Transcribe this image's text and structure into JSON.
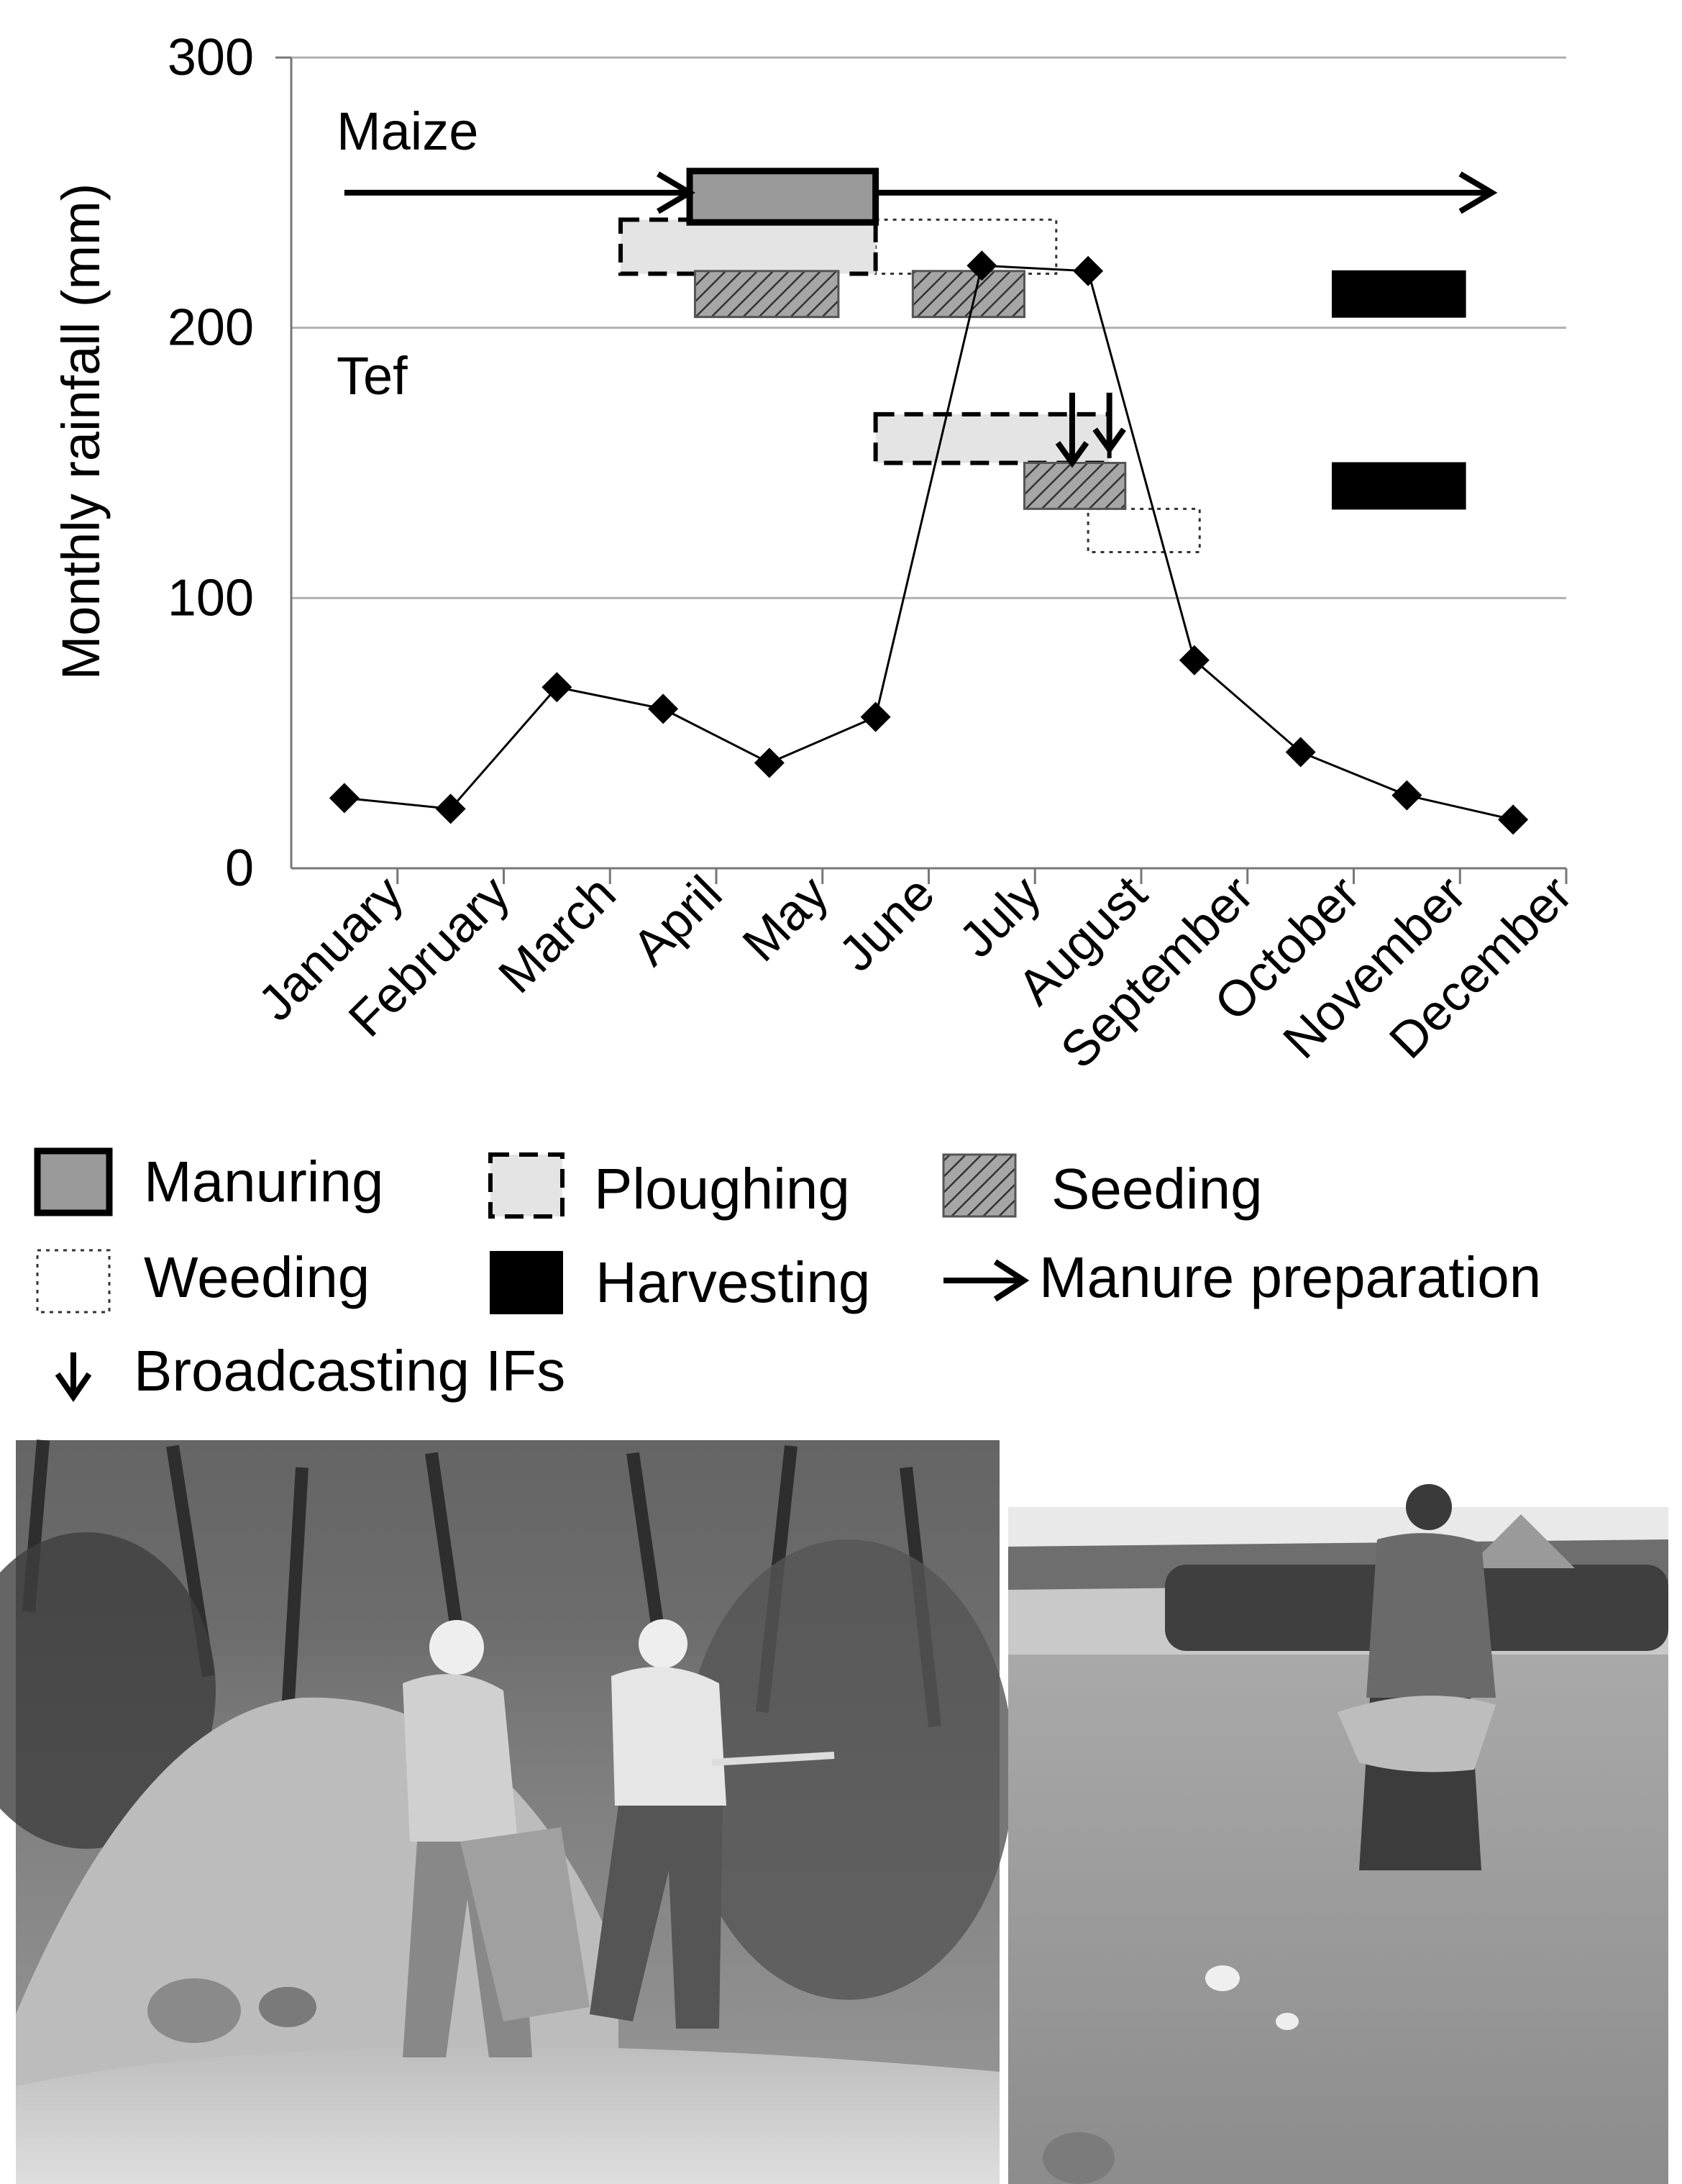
{
  "chart_data": {
    "type": "line",
    "ylabel": "Monthly rainfall (mm)",
    "xlabel": "",
    "ylim": [
      0,
      300
    ],
    "yticks": [
      "0",
      "100",
      "200",
      "300"
    ],
    "grid": true,
    "categories": [
      "January",
      "February",
      "March",
      "April",
      "May",
      "June",
      "July",
      "August",
      "September",
      "October",
      "November",
      "December"
    ],
    "series": [
      {
        "values": [
          26,
          22,
          67,
          59,
          39,
          56,
          223,
          221,
          77,
          43,
          27,
          18
        ]
      }
    ],
    "crop_labels": {
      "maize": "Maize",
      "tef": "Tef"
    },
    "activities": [
      {
        "crop": "Maize",
        "type": "manure-prep",
        "start": 0.0,
        "end": 3.25,
        "y": 250
      },
      {
        "crop": "Maize",
        "type": "manure-prep",
        "start": 5.0,
        "end": 10.8,
        "y": 250
      },
      {
        "crop": "Maize",
        "type": "manuring",
        "start": 3.25,
        "end": 5.0,
        "top": 258,
        "bottom": 239
      },
      {
        "crop": "Maize",
        "type": "ploughing",
        "start": 2.6,
        "end": 5.0,
        "top": 240,
        "bottom": 220
      },
      {
        "crop": "Maize",
        "type": "weeding",
        "start": 5.0,
        "end": 6.7,
        "top": 240,
        "bottom": 220
      },
      {
        "crop": "Maize",
        "type": "seeding",
        "start": 3.3,
        "end": 4.65,
        "top": 221,
        "bottom": 204
      },
      {
        "crop": "Maize",
        "type": "seeding",
        "start": 5.35,
        "end": 6.4,
        "top": 221,
        "bottom": 204
      },
      {
        "crop": "Maize",
        "type": "harvesting",
        "start": 9.3,
        "end": 10.55,
        "top": 221,
        "bottom": 204
      },
      {
        "crop": "Tef",
        "type": "ploughing",
        "start": 5.0,
        "end": 7.2,
        "top": 168,
        "bottom": 150
      },
      {
        "crop": "Tef",
        "type": "seeding",
        "start": 6.4,
        "end": 7.35,
        "top": 150,
        "bottom": 133
      },
      {
        "crop": "Tef",
        "type": "weeding",
        "start": 7.0,
        "end": 8.05,
        "top": 133,
        "bottom": 117
      },
      {
        "crop": "Tef",
        "type": "harvesting",
        "start": 9.3,
        "end": 10.55,
        "top": 150,
        "bottom": 133
      },
      {
        "crop": "Tef",
        "type": "broadcasting",
        "at": 6.85,
        "from": 176,
        "to": 150
      },
      {
        "crop": "Tef",
        "type": "broadcasting",
        "at": 7.2,
        "from": 176,
        "to": 155
      }
    ],
    "legend": [
      {
        "key": "manuring",
        "label": "Manuring"
      },
      {
        "key": "ploughing",
        "label": "Ploughing"
      },
      {
        "key": "seeding",
        "label": "Seeding"
      },
      {
        "key": "weeding",
        "label": "Weeding"
      },
      {
        "key": "harvesting",
        "label": "Harvesting"
      },
      {
        "key": "manure-prep",
        "label": "Manure preparation"
      },
      {
        "key": "broadcasting",
        "label": "Broadcasting IFs"
      }
    ]
  },
  "colors": {
    "manuring": "#9a9a9a",
    "ploughing": "#e4e4e4",
    "seeding": "#a6a6a6",
    "harvesting": "#000000",
    "grid": "#b0b0b0"
  }
}
